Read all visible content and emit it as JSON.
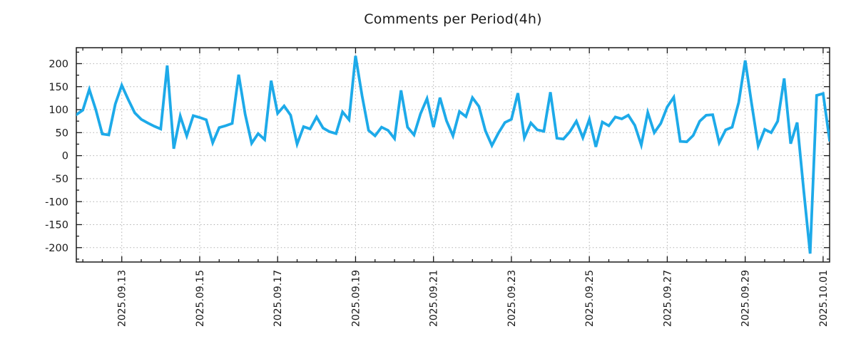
{
  "title": "Comments per Period(4h)",
  "chart_data": {
    "type": "line",
    "title": "Comments per Period(4h)",
    "x_start": "2025-09-11 20:00",
    "x_step_hours": 4,
    "values": [
      89,
      99,
      144,
      100,
      47,
      45,
      112,
      153,
      122,
      93,
      79,
      71,
      64,
      58,
      196,
      15,
      86,
      43,
      87,
      83,
      78,
      28,
      61,
      65,
      70,
      176,
      90,
      27,
      48,
      35,
      163,
      92,
      108,
      88,
      25,
      63,
      58,
      84,
      60,
      52,
      48,
      95,
      78,
      217,
      130,
      55,
      43,
      62,
      55,
      37,
      142,
      62,
      45,
      91,
      124,
      62,
      126,
      76,
      43,
      96,
      85,
      126,
      107,
      54,
      22,
      49,
      72,
      79,
      136,
      39,
      71,
      56,
      53,
      138,
      38,
      36,
      52,
      75,
      39,
      79,
      19,
      73,
      65,
      84,
      80,
      88,
      66,
      23,
      94,
      50,
      70,
      106,
      127,
      31,
      30,
      44,
      75,
      88,
      89,
      28,
      56,
      62,
      116,
      207,
      112,
      21,
      57,
      50,
      75,
      168,
      26,
      72,
      -74,
      -213,
      131,
      135,
      33
    ],
    "x_tick_labels": [
      "2025.09.13",
      "2025.09.15",
      "2025.09.17",
      "2025.09.19",
      "2025.09.21",
      "2025.09.23",
      "2025.09.25",
      "2025.09.27",
      "2025.09.29",
      "2025.10.01"
    ],
    "x_tick_indices": [
      7,
      19,
      31,
      43,
      55,
      67,
      79,
      91,
      103,
      115
    ],
    "y_tick_values": [
      -200,
      -150,
      -100,
      -50,
      0,
      50,
      100,
      150,
      200
    ],
    "y_tick_labels": [
      "-200",
      "-150",
      "-100",
      "-50",
      "0",
      "50",
      "100",
      "150",
      "200"
    ],
    "ylim": [
      -231.3,
      234.7
    ],
    "minor_x_every_points": 3,
    "minor_y_every": 25,
    "grid": "dotted",
    "legend": "none",
    "line_color": "#1daae9",
    "grid_color": "#b0b0b0",
    "frame_color": "#1a1a1a",
    "text_color": "#1a1a1a"
  }
}
